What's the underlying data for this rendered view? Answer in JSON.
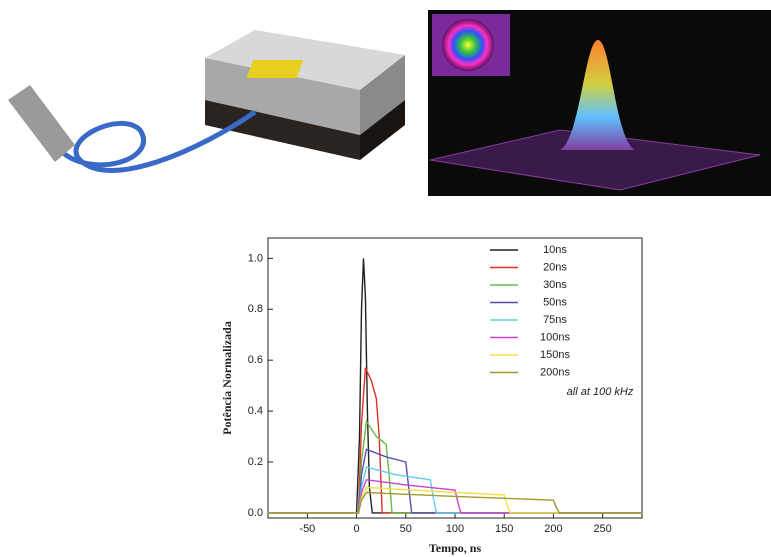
{
  "chart_data": {
    "type": "line",
    "x_label": "Tempo, ns",
    "y_label": "Potência Normalizada",
    "annotation": "all at 100 kHz",
    "xlim": [
      -90,
      290
    ],
    "ylim": [
      -0.02,
      1.08
    ],
    "xticks": [
      -50,
      0,
      50,
      100,
      150,
      200,
      250
    ],
    "yticks": [
      {
        "value": 0,
        "label": "0.0"
      },
      0.2,
      0.4,
      0.6,
      0.8,
      {
        "value": 1,
        "label": "1.0"
      }
    ],
    "series": [
      {
        "name": "10ns",
        "color": "#222222",
        "x": [
          -90,
          0,
          3,
          5,
          7,
          9,
          11,
          13,
          16,
          290
        ],
        "values": [
          0,
          0,
          0.3,
          0.8,
          1.0,
          0.85,
          0.4,
          0.1,
          0,
          0
        ]
      },
      {
        "name": "20ns",
        "color": "#e0302a",
        "x": [
          -90,
          2,
          5,
          9,
          15,
          20,
          23,
          26,
          290
        ],
        "values": [
          0,
          0,
          0.35,
          0.57,
          0.52,
          0.45,
          0.3,
          0,
          0
        ]
      },
      {
        "name": "30ns",
        "color": "#66bb44",
        "x": [
          -90,
          2,
          5,
          10,
          20,
          30,
          33,
          36,
          290
        ],
        "values": [
          0,
          0,
          0.2,
          0.36,
          0.3,
          0.27,
          0.15,
          0,
          0
        ]
      },
      {
        "name": "50ns",
        "color": "#5a4fb0",
        "x": [
          -90,
          2,
          5,
          10,
          30,
          50,
          53,
          56,
          290
        ],
        "values": [
          0,
          0,
          0.15,
          0.25,
          0.22,
          0.2,
          0.1,
          0,
          0
        ]
      },
      {
        "name": "75ns",
        "color": "#66ccee",
        "x": [
          -90,
          2,
          5,
          10,
          40,
          75,
          78,
          81,
          290
        ],
        "values": [
          0,
          0,
          0.1,
          0.18,
          0.15,
          0.13,
          0.06,
          0,
          0
        ]
      },
      {
        "name": "100ns",
        "color": "#cc44cc",
        "x": [
          -90,
          2,
          5,
          10,
          50,
          100,
          103,
          106,
          290
        ],
        "values": [
          0,
          0,
          0.08,
          0.13,
          0.11,
          0.09,
          0.04,
          0,
          0
        ]
      },
      {
        "name": "150ns",
        "color": "#f0e040",
        "x": [
          -90,
          2,
          5,
          10,
          80,
          150,
          153,
          156,
          290
        ],
        "values": [
          0,
          0,
          0.06,
          0.1,
          0.085,
          0.07,
          0.03,
          0,
          0
        ]
      },
      {
        "name": "200ns",
        "color": "#a09a30",
        "x": [
          -90,
          2,
          5,
          10,
          100,
          200,
          203,
          206,
          290
        ],
        "values": [
          0,
          0,
          0.05,
          0.08,
          0.065,
          0.05,
          0.02,
          0,
          0
        ]
      }
    ]
  }
}
